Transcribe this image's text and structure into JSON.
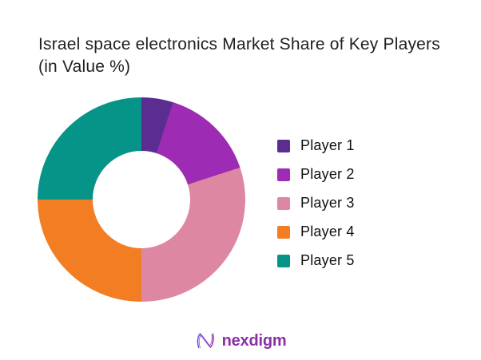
{
  "header": {
    "line1": "Israel space electronics Market Share of Key Players",
    "line2": "(in Value %)"
  },
  "chart_data": {
    "type": "pie",
    "subtype": "donut",
    "title": "Israel space electronics Market Share of Key Players (in Value %)",
    "categories": [
      "Player 1",
      "Player 2",
      "Player 3",
      "Player 4",
      "Player 5"
    ],
    "values": [
      5,
      15,
      30,
      25,
      25
    ],
    "unit": "percent of value",
    "colors": [
      "#5C2D91",
      "#9E2BB3",
      "#DE87A3",
      "#F37D23",
      "#069489"
    ],
    "start_angle_deg": 0,
    "direction": "clockwise",
    "donut_hole_ratio": 0.47,
    "legend_position": "right",
    "data_labels_shown": false
  },
  "legend": {
    "items": [
      {
        "label": "Player 1",
        "color": "#5C2D91"
      },
      {
        "label": "Player 2",
        "color": "#9E2BB3"
      },
      {
        "label": "Player 3",
        "color": "#DE87A3"
      },
      {
        "label": "Player 4",
        "color": "#F37D23"
      },
      {
        "label": "Player 5",
        "color": "#069489"
      }
    ]
  },
  "footer": {
    "brand": "nexdigm",
    "brand_color": "#8B2FA8",
    "mark_icon": "nexdigm-n-wave-mark"
  }
}
